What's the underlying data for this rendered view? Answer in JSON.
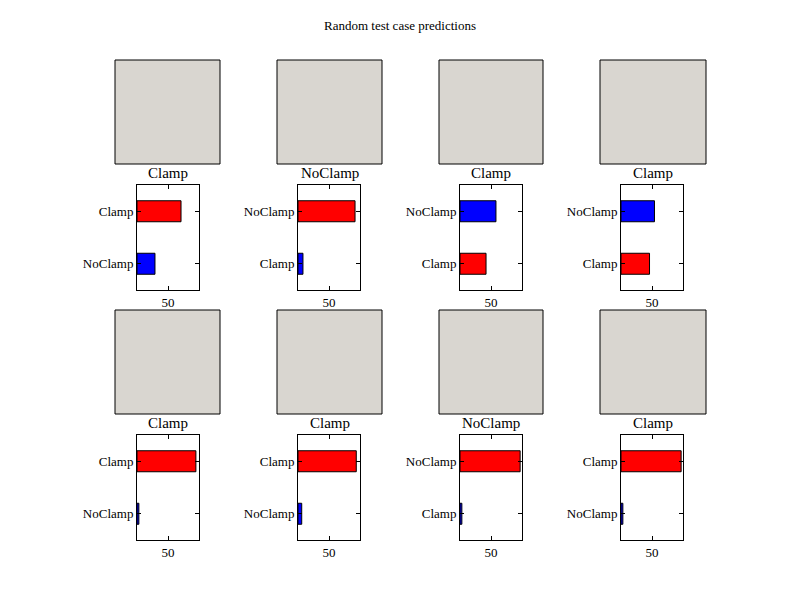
{
  "title": "Random test case predictions",
  "chart_data": [
    {
      "type": "bar",
      "orientation": "horizontal",
      "title": "Clamp",
      "categories": [
        "Clamp",
        "NoClamp"
      ],
      "values": [
        71,
        29
      ],
      "colors": [
        "#ff0000",
        "#0000ff"
      ],
      "xlim": [
        0,
        100
      ],
      "xticks": [
        50
      ]
    },
    {
      "type": "bar",
      "orientation": "horizontal",
      "title": "NoClamp",
      "categories": [
        "NoClamp",
        "Clamp"
      ],
      "values": [
        92,
        8
      ],
      "colors": [
        "#ff0000",
        "#0000ff"
      ],
      "xlim": [
        0,
        100
      ],
      "xticks": [
        50
      ]
    },
    {
      "type": "bar",
      "orientation": "horizontal",
      "title": "Clamp",
      "categories": [
        "NoClamp",
        "Clamp"
      ],
      "values": [
        58,
        42
      ],
      "colors": [
        "#0000ff",
        "#ff0000"
      ],
      "xlim": [
        0,
        100
      ],
      "xticks": [
        50
      ]
    },
    {
      "type": "bar",
      "orientation": "horizontal",
      "title": "Clamp",
      "categories": [
        "NoClamp",
        "Clamp"
      ],
      "values": [
        54,
        46
      ],
      "colors": [
        "#0000ff",
        "#ff0000"
      ],
      "xlim": [
        0,
        100
      ],
      "xticks": [
        50
      ]
    },
    {
      "type": "bar",
      "orientation": "horizontal",
      "title": "Clamp",
      "categories": [
        "Clamp",
        "NoClamp"
      ],
      "values": [
        95,
        3
      ],
      "colors": [
        "#ff0000",
        "#0000ff"
      ],
      "xlim": [
        0,
        100
      ],
      "xticks": [
        50
      ]
    },
    {
      "type": "bar",
      "orientation": "horizontal",
      "title": "Clamp",
      "categories": [
        "Clamp",
        "NoClamp"
      ],
      "values": [
        94,
        6
      ],
      "colors": [
        "#ff0000",
        "#0000ff"
      ],
      "xlim": [
        0,
        100
      ],
      "xticks": [
        50
      ]
    },
    {
      "type": "bar",
      "orientation": "horizontal",
      "title": "NoClamp",
      "categories": [
        "NoClamp",
        "Clamp"
      ],
      "values": [
        97,
        3
      ],
      "colors": [
        "#ff0000",
        "#0000ff"
      ],
      "xlim": [
        0,
        100
      ],
      "xticks": [
        50
      ]
    },
    {
      "type": "bar",
      "orientation": "horizontal",
      "title": "Clamp",
      "categories": [
        "Clamp",
        "NoClamp"
      ],
      "values": [
        97,
        3
      ],
      "colors": [
        "#ff0000",
        "#0000ff"
      ],
      "xlim": [
        0,
        100
      ],
      "xticks": [
        50
      ]
    }
  ]
}
